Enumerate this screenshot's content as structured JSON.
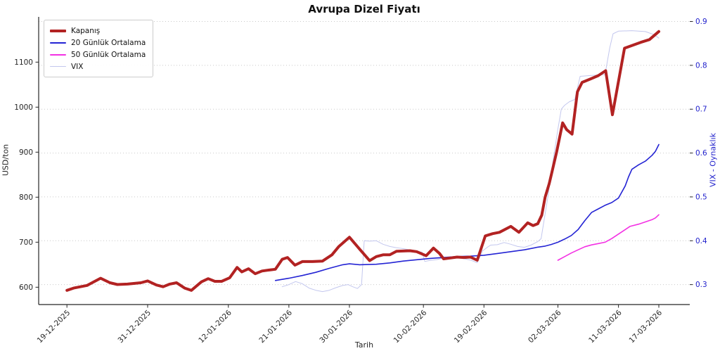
{
  "title": "Avrupa Dizel Fiyatı",
  "axes": {
    "x_label": "Tarih",
    "y_left_label": "USD/ton",
    "y_right_label": "VIX - Oynaklık",
    "left_tick_color": "#262626",
    "right_tick_color": "#2222cc"
  },
  "legend": {
    "items": [
      {
        "label": "Kapanış",
        "color": "#b22222",
        "thickness": 4
      },
      {
        "label": "20 Günlük Ortalama",
        "color": "#2424d4",
        "thickness": 2
      },
      {
        "label": "50 Günlük Ortalama",
        "color": "#f331e3",
        "thickness": 2
      },
      {
        "label": "VIX",
        "color": "#c3c7ee",
        "thickness": 1
      }
    ]
  },
  "colors": {
    "grid": "#c9c9c9",
    "spine": "#262626",
    "title": "#111111",
    "close_line": "#b22222",
    "ma20_line": "#2424d4",
    "ma50_line": "#f331e3",
    "vix_line": "#c3c7ee"
  },
  "chart_data": {
    "type": "line",
    "title": "Avrupa Dizel Fiyatı",
    "xlabel": "Tarih",
    "ylabel_left": "USD/ton",
    "ylabel_right": "VIX - Oynaklık",
    "x_unit": "days since 19-12-2025",
    "xlim": [
      -4.2,
      92.6
    ],
    "ylim_left": [
      561.5,
      1200.5
    ],
    "ylim_right": [
      0.2545,
      0.9105
    ],
    "grid": "horizontal-dotted",
    "legend_position": "upper-left",
    "x_ticks": {
      "days": [
        0,
        12,
        24,
        33,
        42,
        53,
        62,
        73,
        82,
        88
      ],
      "labels": [
        "19-12-2025",
        "31-12-2025",
        "12-01-2026",
        "21-01-2026",
        "30-01-2026",
        "10-02-2026",
        "19-02-2026",
        "02-03-2026",
        "11-03-2026",
        "17-03-2026"
      ]
    },
    "left_ticks": [
      600,
      700,
      800,
      900,
      1000,
      1100
    ],
    "right_ticks": [
      0.3,
      0.4,
      0.5,
      0.6,
      0.7,
      0.8,
      0.9
    ],
    "series": [
      {
        "name": "VIX",
        "axis": "right",
        "color": "#c3c7ee",
        "width": 1,
        "points": [
          [
            32,
            0.295
          ],
          [
            33,
            0.3
          ],
          [
            34,
            0.307
          ],
          [
            35,
            0.302
          ],
          [
            36,
            0.292
          ],
          [
            37,
            0.287
          ],
          [
            38,
            0.284
          ],
          [
            39,
            0.287
          ],
          [
            40,
            0.293
          ],
          [
            41,
            0.298
          ],
          [
            41.8,
            0.3
          ],
          [
            42.5,
            0.295
          ],
          [
            43.2,
            0.291
          ],
          [
            43.8,
            0.3
          ],
          [
            44.2,
            0.4
          ],
          [
            45,
            0.399
          ],
          [
            46,
            0.4
          ],
          [
            47,
            0.392
          ],
          [
            48,
            0.387
          ],
          [
            49,
            0.384
          ],
          [
            50,
            0.382
          ],
          [
            51,
            0.379
          ],
          [
            52,
            0.376
          ],
          [
            52.8,
            0.374
          ],
          [
            53.2,
            0.353
          ],
          [
            54,
            0.355
          ],
          [
            55,
            0.357
          ],
          [
            56,
            0.361
          ],
          [
            57,
            0.36
          ],
          [
            58,
            0.361
          ],
          [
            59,
            0.359
          ],
          [
            60,
            0.356
          ],
          [
            61,
            0.35
          ],
          [
            61.8,
            0.377
          ],
          [
            62.5,
            0.385
          ],
          [
            63,
            0.39
          ],
          [
            64,
            0.391
          ],
          [
            65,
            0.396
          ],
          [
            66,
            0.392
          ],
          [
            67,
            0.387
          ],
          [
            68,
            0.385
          ],
          [
            69,
            0.39
          ],
          [
            70,
            0.398
          ],
          [
            70.5,
            0.405
          ],
          [
            71.5,
            0.5
          ],
          [
            72.2,
            0.575
          ],
          [
            73,
            0.655
          ],
          [
            73.5,
            0.7
          ],
          [
            74,
            0.709
          ],
          [
            74.7,
            0.717
          ],
          [
            75.5,
            0.722
          ],
          [
            76.3,
            0.775
          ],
          [
            78,
            0.777
          ],
          [
            80,
            0.779
          ],
          [
            80.7,
            0.84
          ],
          [
            81.2,
            0.872
          ],
          [
            82,
            0.878
          ],
          [
            84,
            0.879
          ],
          [
            86,
            0.877
          ],
          [
            87.3,
            0.87
          ],
          [
            88,
            0.862
          ]
        ]
      },
      {
        "name": "20 Günlük Ortalama",
        "axis": "left",
        "color": "#2424d4",
        "width": 1.6,
        "points": [
          [
            31,
            615
          ],
          [
            33,
            620
          ],
          [
            35,
            626
          ],
          [
            37,
            633
          ],
          [
            39,
            642
          ],
          [
            41,
            650
          ],
          [
            42,
            652
          ],
          [
            43.5,
            650
          ],
          [
            46,
            651
          ],
          [
            48,
            654
          ],
          [
            50,
            658
          ],
          [
            52,
            661
          ],
          [
            54,
            664
          ],
          [
            56,
            666
          ],
          [
            58,
            668
          ],
          [
            60,
            669
          ],
          [
            62,
            671
          ],
          [
            64,
            675
          ],
          [
            66,
            679
          ],
          [
            68,
            683
          ],
          [
            70,
            689
          ],
          [
            71,
            691
          ],
          [
            72,
            695
          ],
          [
            73,
            700
          ],
          [
            74,
            707
          ],
          [
            75,
            715
          ],
          [
            76,
            728
          ],
          [
            77,
            748
          ],
          [
            78,
            766
          ],
          [
            79,
            774
          ],
          [
            80,
            782
          ],
          [
            81,
            788
          ],
          [
            82,
            798
          ],
          [
            83,
            825
          ],
          [
            83.5,
            845
          ],
          [
            84,
            862
          ],
          [
            85,
            872
          ],
          [
            86,
            880
          ],
          [
            87,
            893
          ],
          [
            87.5,
            902
          ],
          [
            88,
            917
          ]
        ]
      },
      {
        "name": "50 Günlük Ortalama",
        "axis": "left",
        "color": "#f331e3",
        "width": 1.6,
        "points": [
          [
            73,
            660
          ],
          [
            74,
            668
          ],
          [
            75,
            676
          ],
          [
            76,
            683
          ],
          [
            77,
            690
          ],
          [
            78,
            694
          ],
          [
            79,
            697
          ],
          [
            80,
            700
          ],
          [
            81,
            708
          ],
          [
            82,
            718
          ],
          [
            83,
            728
          ],
          [
            83.7,
            735
          ],
          [
            85,
            740
          ],
          [
            86,
            745
          ],
          [
            87,
            750
          ],
          [
            87.5,
            754
          ],
          [
            88,
            761
          ]
        ]
      },
      {
        "name": "Kapanış",
        "axis": "left",
        "color": "#b22222",
        "width": 4,
        "points": [
          [
            0,
            593
          ],
          [
            1,
            598
          ],
          [
            2,
            601
          ],
          [
            3,
            604
          ],
          [
            5,
            620
          ],
          [
            6.4,
            610
          ],
          [
            7.5,
            606
          ],
          [
            9,
            607
          ],
          [
            11,
            610
          ],
          [
            12,
            614
          ],
          [
            13.3,
            605
          ],
          [
            14.3,
            601
          ],
          [
            15.3,
            607
          ],
          [
            16.3,
            610
          ],
          [
            17.5,
            598
          ],
          [
            18.5,
            593
          ],
          [
            20,
            612
          ],
          [
            21,
            619
          ],
          [
            22,
            613
          ],
          [
            23,
            613
          ],
          [
            24.2,
            621
          ],
          [
            25.3,
            644
          ],
          [
            26,
            634
          ],
          [
            27,
            641
          ],
          [
            28,
            630
          ],
          [
            29,
            636
          ],
          [
            30,
            638
          ],
          [
            31,
            640
          ],
          [
            32,
            662
          ],
          [
            32.8,
            666
          ],
          [
            33.9,
            649
          ],
          [
            35,
            657
          ],
          [
            36.5,
            657
          ],
          [
            38,
            658
          ],
          [
            39.4,
            672
          ],
          [
            40.4,
            690
          ],
          [
            42,
            711
          ],
          [
            43.6,
            683
          ],
          [
            45,
            659
          ],
          [
            46,
            668
          ],
          [
            47,
            672
          ],
          [
            48,
            672
          ],
          [
            49,
            680
          ],
          [
            51,
            681
          ],
          [
            52,
            679
          ],
          [
            53.4,
            670
          ],
          [
            54.5,
            687
          ],
          [
            55.4,
            675
          ],
          [
            56,
            663
          ],
          [
            57,
            665
          ],
          [
            58,
            667
          ],
          [
            59,
            666
          ],
          [
            60,
            667
          ],
          [
            61,
            660
          ],
          [
            62.2,
            714
          ],
          [
            63.3,
            719
          ],
          [
            64.3,
            722
          ],
          [
            66,
            735
          ],
          [
            67.2,
            722
          ],
          [
            68.5,
            743
          ],
          [
            69.3,
            737
          ],
          [
            70,
            741
          ],
          [
            70.6,
            760
          ],
          [
            71.1,
            800
          ],
          [
            71.7,
            830
          ],
          [
            72.1,
            855
          ],
          [
            72.8,
            900
          ],
          [
            73.7,
            965
          ],
          [
            74.3,
            950
          ],
          [
            75.1,
            940
          ],
          [
            75.9,
            1034
          ],
          [
            76.6,
            1055
          ],
          [
            77.9,
            1063
          ],
          [
            79,
            1070
          ],
          [
            80.1,
            1081
          ],
          [
            81.1,
            983
          ],
          [
            82.9,
            1131
          ],
          [
            85.3,
            1144
          ],
          [
            86.6,
            1150
          ],
          [
            88,
            1168
          ]
        ]
      }
    ]
  }
}
